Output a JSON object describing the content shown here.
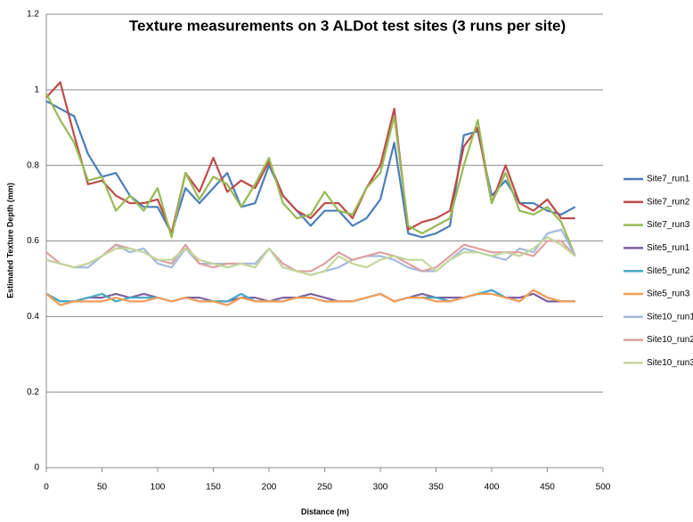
{
  "chart_data": {
    "type": "line",
    "title": "Texture measurements on 3 ALDot test sites (3 runs per site)",
    "x_label": "Distance (m)",
    "y_label": "Estimated Texture Depth (mm)",
    "x": [
      0,
      12.5,
      25,
      37.5,
      50,
      62.5,
      75,
      87.5,
      100,
      112.5,
      125,
      137.5,
      150,
      162.5,
      175,
      187.5,
      200,
      212.5,
      225,
      237.5,
      250,
      262.5,
      275,
      287.5,
      300,
      312.5,
      325,
      337.5,
      350,
      362.5,
      375,
      387.5,
      400,
      412.5,
      425,
      437.5,
      450,
      462.5,
      475
    ],
    "xlim": [
      0,
      500
    ],
    "xticks": [
      0,
      50,
      100,
      150,
      200,
      250,
      300,
      350,
      400,
      450,
      500
    ],
    "ylim": [
      0,
      1.2
    ],
    "yticks": [
      0,
      0.2,
      0.4,
      0.6,
      0.8,
      1,
      1.2
    ],
    "grid": true,
    "legend": "right",
    "series": [
      {
        "name": "Site7_run1",
        "color": "#4a7ebb",
        "values": [
          0.97,
          0.95,
          0.93,
          0.83,
          0.77,
          0.78,
          0.72,
          0.69,
          0.69,
          0.62,
          0.74,
          0.7,
          0.74,
          0.78,
          0.69,
          0.7,
          0.8,
          0.72,
          0.68,
          0.64,
          0.68,
          0.68,
          0.64,
          0.66,
          0.71,
          0.86,
          0.62,
          0.61,
          0.62,
          0.64,
          0.88,
          0.89,
          0.72,
          0.76,
          0.7,
          0.7,
          0.68,
          0.67,
          0.69
        ]
      },
      {
        "name": "Site7_run2",
        "color": "#be4b48",
        "values": [
          0.98,
          1.02,
          0.88,
          0.75,
          0.76,
          0.72,
          0.7,
          0.7,
          0.71,
          0.62,
          0.78,
          0.73,
          0.82,
          0.73,
          0.76,
          0.74,
          0.81,
          0.72,
          0.68,
          0.66,
          0.7,
          0.7,
          0.66,
          0.74,
          0.8,
          0.95,
          0.63,
          0.65,
          0.66,
          0.68,
          0.85,
          0.9,
          0.7,
          0.8,
          0.7,
          0.68,
          0.71,
          0.66,
          0.66
        ]
      },
      {
        "name": "Site7_run3",
        "color": "#98b954",
        "values": [
          0.99,
          0.92,
          0.86,
          0.76,
          0.77,
          0.68,
          0.72,
          0.68,
          0.74,
          0.61,
          0.78,
          0.71,
          0.77,
          0.75,
          0.69,
          0.75,
          0.82,
          0.7,
          0.66,
          0.67,
          0.73,
          0.68,
          0.67,
          0.74,
          0.78,
          0.93,
          0.64,
          0.62,
          0.64,
          0.66,
          0.8,
          0.92,
          0.7,
          0.78,
          0.68,
          0.67,
          0.69,
          0.65,
          0.56
        ]
      },
      {
        "name": "Site5_run1",
        "color": "#7d60a0",
        "values": [
          0.46,
          0.44,
          0.44,
          0.45,
          0.45,
          0.46,
          0.45,
          0.46,
          0.45,
          0.44,
          0.45,
          0.45,
          0.44,
          0.44,
          0.45,
          0.45,
          0.44,
          0.45,
          0.45,
          0.46,
          0.45,
          0.44,
          0.44,
          0.45,
          0.46,
          0.44,
          0.45,
          0.46,
          0.45,
          0.45,
          0.45,
          0.46,
          0.47,
          0.45,
          0.45,
          0.46,
          0.44,
          0.44,
          0.44
        ]
      },
      {
        "name": "Site5_run2",
        "color": "#46aac5",
        "values": [
          0.46,
          0.44,
          0.44,
          0.45,
          0.46,
          0.44,
          0.45,
          0.45,
          0.45,
          0.44,
          0.45,
          0.44,
          0.44,
          0.44,
          0.46,
          0.44,
          0.44,
          0.44,
          0.45,
          0.45,
          0.44,
          0.44,
          0.44,
          0.45,
          0.46,
          0.44,
          0.45,
          0.45,
          0.45,
          0.44,
          0.45,
          0.46,
          0.47,
          0.45,
          0.44,
          0.47,
          0.45,
          0.44,
          0.44
        ]
      },
      {
        "name": "Site5_run3",
        "color": "#f59d56",
        "values": [
          0.46,
          0.43,
          0.44,
          0.44,
          0.44,
          0.45,
          0.44,
          0.44,
          0.45,
          0.44,
          0.45,
          0.44,
          0.44,
          0.43,
          0.45,
          0.44,
          0.44,
          0.44,
          0.45,
          0.45,
          0.44,
          0.44,
          0.44,
          0.45,
          0.46,
          0.44,
          0.45,
          0.45,
          0.44,
          0.44,
          0.45,
          0.46,
          0.46,
          0.45,
          0.44,
          0.47,
          0.45,
          0.44,
          0.44
        ]
      },
      {
        "name": "Site10_run1",
        "color": "#a5b9dc",
        "values": [
          0.55,
          0.54,
          0.53,
          0.53,
          0.56,
          0.59,
          0.57,
          0.58,
          0.54,
          0.53,
          0.58,
          0.54,
          0.54,
          0.54,
          0.54,
          0.54,
          0.58,
          0.53,
          0.52,
          0.51,
          0.52,
          0.53,
          0.55,
          0.56,
          0.56,
          0.55,
          0.53,
          0.52,
          0.52,
          0.55,
          0.58,
          0.57,
          0.56,
          0.55,
          0.58,
          0.57,
          0.62,
          0.63,
          0.56
        ]
      },
      {
        "name": "Site10_run2",
        "color": "#dba1a0",
        "values": [
          0.57,
          0.54,
          0.53,
          0.54,
          0.56,
          0.59,
          0.58,
          0.57,
          0.55,
          0.54,
          0.59,
          0.54,
          0.53,
          0.54,
          0.54,
          0.53,
          0.58,
          0.54,
          0.52,
          0.52,
          0.54,
          0.57,
          0.55,
          0.56,
          0.57,
          0.56,
          0.54,
          0.52,
          0.53,
          0.56,
          0.59,
          0.58,
          0.57,
          0.57,
          0.57,
          0.56,
          0.6,
          0.6,
          0.56
        ]
      },
      {
        "name": "Site10_run3",
        "color": "#c3d69b",
        "values": [
          0.55,
          0.54,
          0.53,
          0.54,
          0.56,
          0.58,
          0.58,
          0.57,
          0.55,
          0.55,
          0.58,
          0.55,
          0.54,
          0.53,
          0.54,
          0.53,
          0.58,
          0.53,
          0.52,
          0.51,
          0.52,
          0.56,
          0.54,
          0.53,
          0.55,
          0.56,
          0.55,
          0.55,
          0.52,
          0.55,
          0.57,
          0.57,
          0.56,
          0.57,
          0.56,
          0.58,
          0.61,
          0.59,
          0.56
        ]
      }
    ]
  }
}
